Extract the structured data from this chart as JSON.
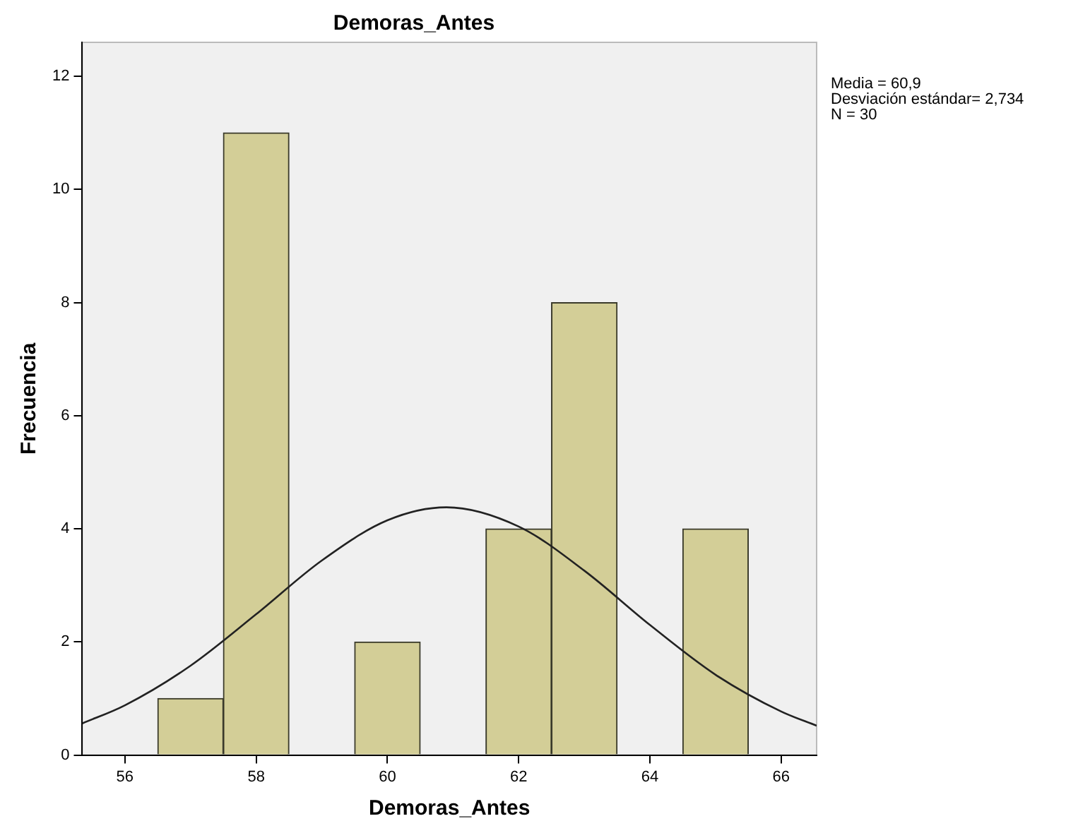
{
  "chart_data": {
    "type": "histogram",
    "title": "Demoras_Antes",
    "xlabel": "Demoras_Antes",
    "ylabel": "Frecuencia",
    "bins": [
      56.5,
      57.5,
      58.5,
      59.5,
      60.5,
      61.5,
      62.5,
      63.5,
      64.5,
      65.5
    ],
    "values": [
      1,
      11,
      0,
      2,
      0,
      4,
      8,
      0,
      4
    ],
    "color": "#d3ce97",
    "series": [
      {
        "type": "line",
        "color": "#222222",
        "x": [
          55.35,
          56,
          57,
          58,
          59,
          60,
          60.9,
          62,
          63,
          64,
          65,
          66,
          66.54
        ],
        "values": [
          0.56,
          0.88,
          1.58,
          2.49,
          3.44,
          4.15,
          4.38,
          4.04,
          3.26,
          2.3,
          1.42,
          0.77,
          0.52
        ]
      }
    ],
    "xlim": [
      55.35,
      66.54
    ],
    "xticks": [
      56,
      58,
      60,
      62,
      64,
      66
    ],
    "ylim": [
      0,
      12.6
    ],
    "yticks": [
      0,
      2,
      4,
      6,
      8,
      10,
      12
    ],
    "annotations": [
      "Media = 60,9",
      "Desviación estándar= 2,734",
      "N = 30"
    ],
    "grid": false,
    "legend": false,
    "marker": "none"
  }
}
